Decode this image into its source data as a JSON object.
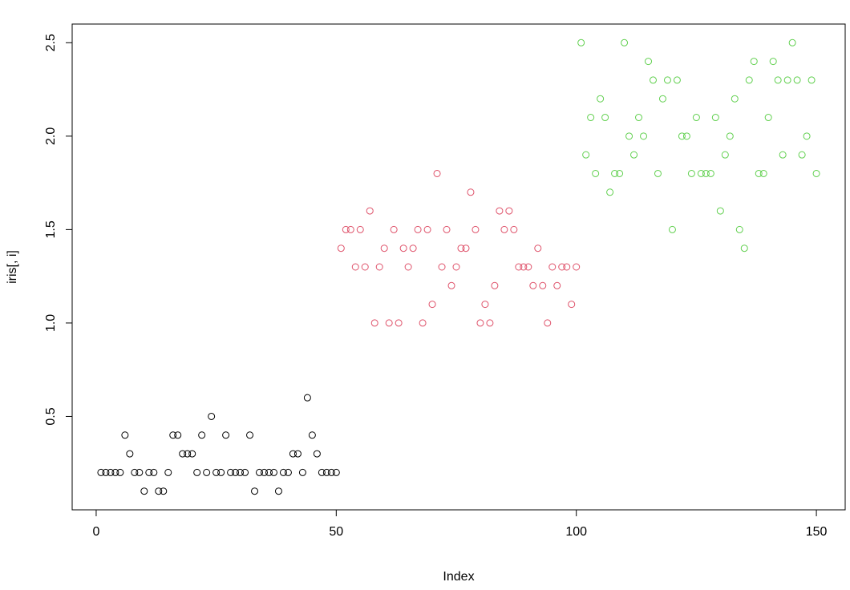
{
  "chart_data": {
    "type": "scatter",
    "title": "",
    "xlabel": "Index",
    "ylabel": "iris[, i]",
    "xlim": [
      -5,
      156
    ],
    "ylim": [
      0.0,
      2.6
    ],
    "x_ticks": [
      0,
      50,
      100,
      150
    ],
    "y_ticks": [
      0.5,
      1.0,
      1.5,
      2.0,
      2.5
    ],
    "x_tick_labels": [
      "0",
      "50",
      "100",
      "150"
    ],
    "y_tick_labels": [
      "0.5",
      "1.0",
      "1.5",
      "2.0",
      "2.5"
    ],
    "grid": false,
    "legend": "none",
    "series": [
      {
        "color": "#000000",
        "x": [
          1,
          2,
          3,
          4,
          5,
          6,
          7,
          8,
          9,
          10,
          11,
          12,
          13,
          14,
          15,
          16,
          17,
          18,
          19,
          20,
          21,
          22,
          23,
          24,
          25,
          26,
          27,
          28,
          29,
          30,
          31,
          32,
          33,
          34,
          35,
          36,
          37,
          38,
          39,
          40,
          41,
          42,
          43,
          44,
          45,
          46,
          47,
          48,
          49,
          50
        ],
        "y": [
          0.2,
          0.2,
          0.2,
          0.2,
          0.2,
          0.4,
          0.3,
          0.2,
          0.2,
          0.1,
          0.2,
          0.2,
          0.1,
          0.1,
          0.2,
          0.4,
          0.4,
          0.3,
          0.3,
          0.3,
          0.2,
          0.4,
          0.2,
          0.5,
          0.2,
          0.2,
          0.4,
          0.2,
          0.2,
          0.2,
          0.2,
          0.4,
          0.1,
          0.2,
          0.2,
          0.2,
          0.2,
          0.1,
          0.2,
          0.2,
          0.3,
          0.3,
          0.2,
          0.6,
          0.4,
          0.3,
          0.2,
          0.2,
          0.2,
          0.2
        ]
      },
      {
        "color": "#DF536B",
        "x": [
          51,
          52,
          53,
          54,
          55,
          56,
          57,
          58,
          59,
          60,
          61,
          62,
          63,
          64,
          65,
          66,
          67,
          68,
          69,
          70,
          71,
          72,
          73,
          74,
          75,
          76,
          77,
          78,
          79,
          80,
          81,
          82,
          83,
          84,
          85,
          86,
          87,
          88,
          89,
          90,
          91,
          92,
          93,
          94,
          95,
          96,
          97,
          98,
          99,
          100
        ],
        "y": [
          1.4,
          1.5,
          1.5,
          1.3,
          1.5,
          1.3,
          1.6,
          1.0,
          1.3,
          1.4,
          1.0,
          1.5,
          1.0,
          1.4,
          1.3,
          1.4,
          1.5,
          1.0,
          1.5,
          1.1,
          1.8,
          1.3,
          1.5,
          1.2,
          1.3,
          1.4,
          1.4,
          1.7,
          1.5,
          1.0,
          1.1,
          1.0,
          1.2,
          1.6,
          1.5,
          1.6,
          1.5,
          1.3,
          1.3,
          1.3,
          1.2,
          1.4,
          1.2,
          1.0,
          1.3,
          1.2,
          1.3,
          1.3,
          1.1,
          1.3
        ]
      },
      {
        "color": "#61D04F",
        "x": [
          101,
          102,
          103,
          104,
          105,
          106,
          107,
          108,
          109,
          110,
          111,
          112,
          113,
          114,
          115,
          116,
          117,
          118,
          119,
          120,
          121,
          122,
          123,
          124,
          125,
          126,
          127,
          128,
          129,
          130,
          131,
          132,
          133,
          134,
          135,
          136,
          137,
          138,
          139,
          140,
          141,
          142,
          143,
          144,
          145,
          146,
          147,
          148,
          149,
          150
        ],
        "y": [
          2.5,
          1.9,
          2.1,
          1.8,
          2.2,
          2.1,
          1.7,
          1.8,
          1.8,
          2.5,
          2.0,
          1.9,
          2.1,
          2.0,
          2.4,
          2.3,
          1.8,
          2.2,
          2.3,
          1.5,
          2.3,
          2.0,
          2.0,
          1.8,
          2.1,
          1.8,
          1.8,
          1.8,
          2.1,
          1.6,
          1.9,
          2.0,
          2.2,
          1.5,
          1.4,
          2.3,
          2.4,
          1.8,
          1.8,
          2.1,
          2.4,
          2.3,
          1.9,
          2.3,
          2.5,
          2.3,
          1.9,
          2.0,
          2.3,
          1.8
        ]
      }
    ]
  }
}
